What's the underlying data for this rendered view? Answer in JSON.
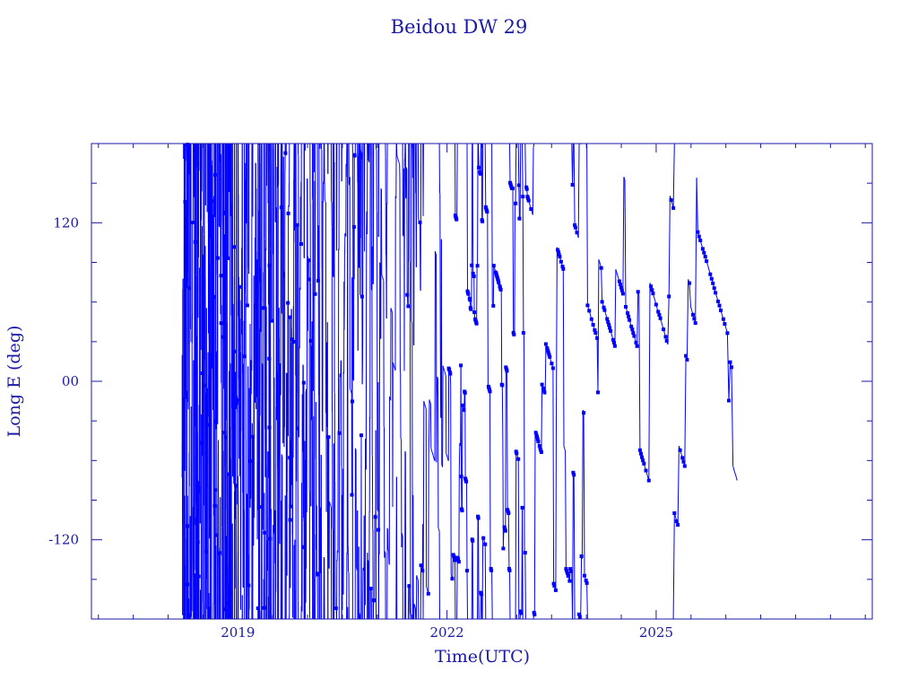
{
  "chart_data": {
    "type": "line",
    "title": "Beidou DW 29",
    "xlabel": "Time(UTC)",
    "ylabel": "Long E (deg)",
    "xlim": [
      2016.9,
      2028.1
    ],
    "ylim": [
      -180,
      180
    ],
    "x_ticks": [
      2019,
      2022,
      2025
    ],
    "x_tick_labels": [
      "2019",
      "2022",
      "2025"
    ],
    "y_ticks": [
      120,
      0,
      -120
    ],
    "y_tick_labels": [
      "120",
      "00",
      "-120"
    ],
    "grid": false,
    "legend": "none",
    "series": [
      {
        "marker": "square",
        "time_start": 2018.2,
        "time_end": 2026.15,
        "longitude_range": [
          -180,
          180
        ],
        "drift_deg_per_day": -0.49
      }
    ],
    "colors": {
      "axes": "#1a1aa6",
      "series": "#0000ff"
    }
  }
}
